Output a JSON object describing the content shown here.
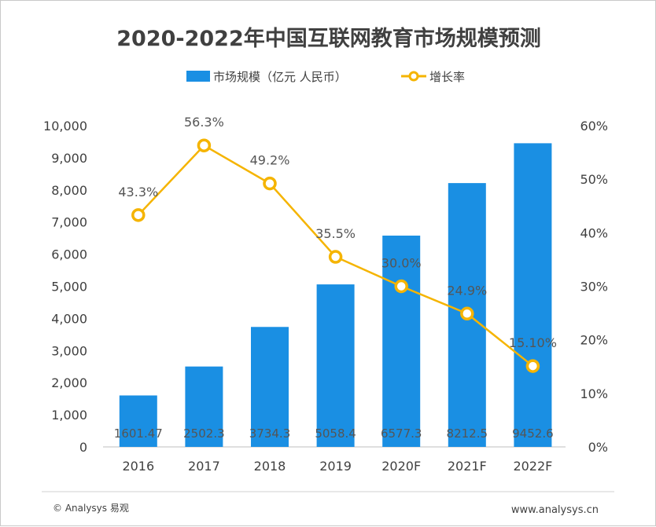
{
  "chart_data": {
    "type": "bar",
    "title": "2020-2022年中国互联网教育市场规模预测",
    "categories": [
      "2016",
      "2017",
      "2018",
      "2019",
      "2020F",
      "2021F",
      "2022F"
    ],
    "series": [
      {
        "name": "市场规模（亿元 人民币）",
        "type": "bar",
        "axis": "left",
        "values": [
          1601.47,
          2502.3,
          3734.3,
          5058.4,
          6577.3,
          8212.5,
          9452.6
        ],
        "labels": [
          "1601.47",
          "2502.3",
          "3734.3",
          "5058.4",
          "6577.3",
          "8212.5",
          "9452.6"
        ],
        "color": "#1a8fe3"
      },
      {
        "name": "增长率",
        "type": "line",
        "axis": "right",
        "values": [
          43.3,
          56.3,
          49.2,
          35.5,
          30.0,
          24.9,
          15.1
        ],
        "labels": [
          "43.3%",
          "56.3%",
          "49.2%",
          "35.5%",
          "30.0%",
          "24.9%",
          "15.10%"
        ],
        "color": "#f5b400"
      }
    ],
    "y_left": {
      "ylim": [
        0,
        10000
      ],
      "ticks": [
        "0",
        "1,000",
        "2,000",
        "3,000",
        "4,000",
        "5,000",
        "6,000",
        "7,000",
        "8,000",
        "9,000",
        "10,000"
      ]
    },
    "y_right": {
      "ylim": [
        0,
        60
      ],
      "ticks": [
        "0%",
        "10%",
        "20%",
        "30%",
        "40%",
        "50%",
        "60%"
      ]
    },
    "grid": false,
    "legend": "top-center"
  },
  "footer": {
    "source": "© Analysys 易观",
    "url": "www.analysys.cn"
  }
}
